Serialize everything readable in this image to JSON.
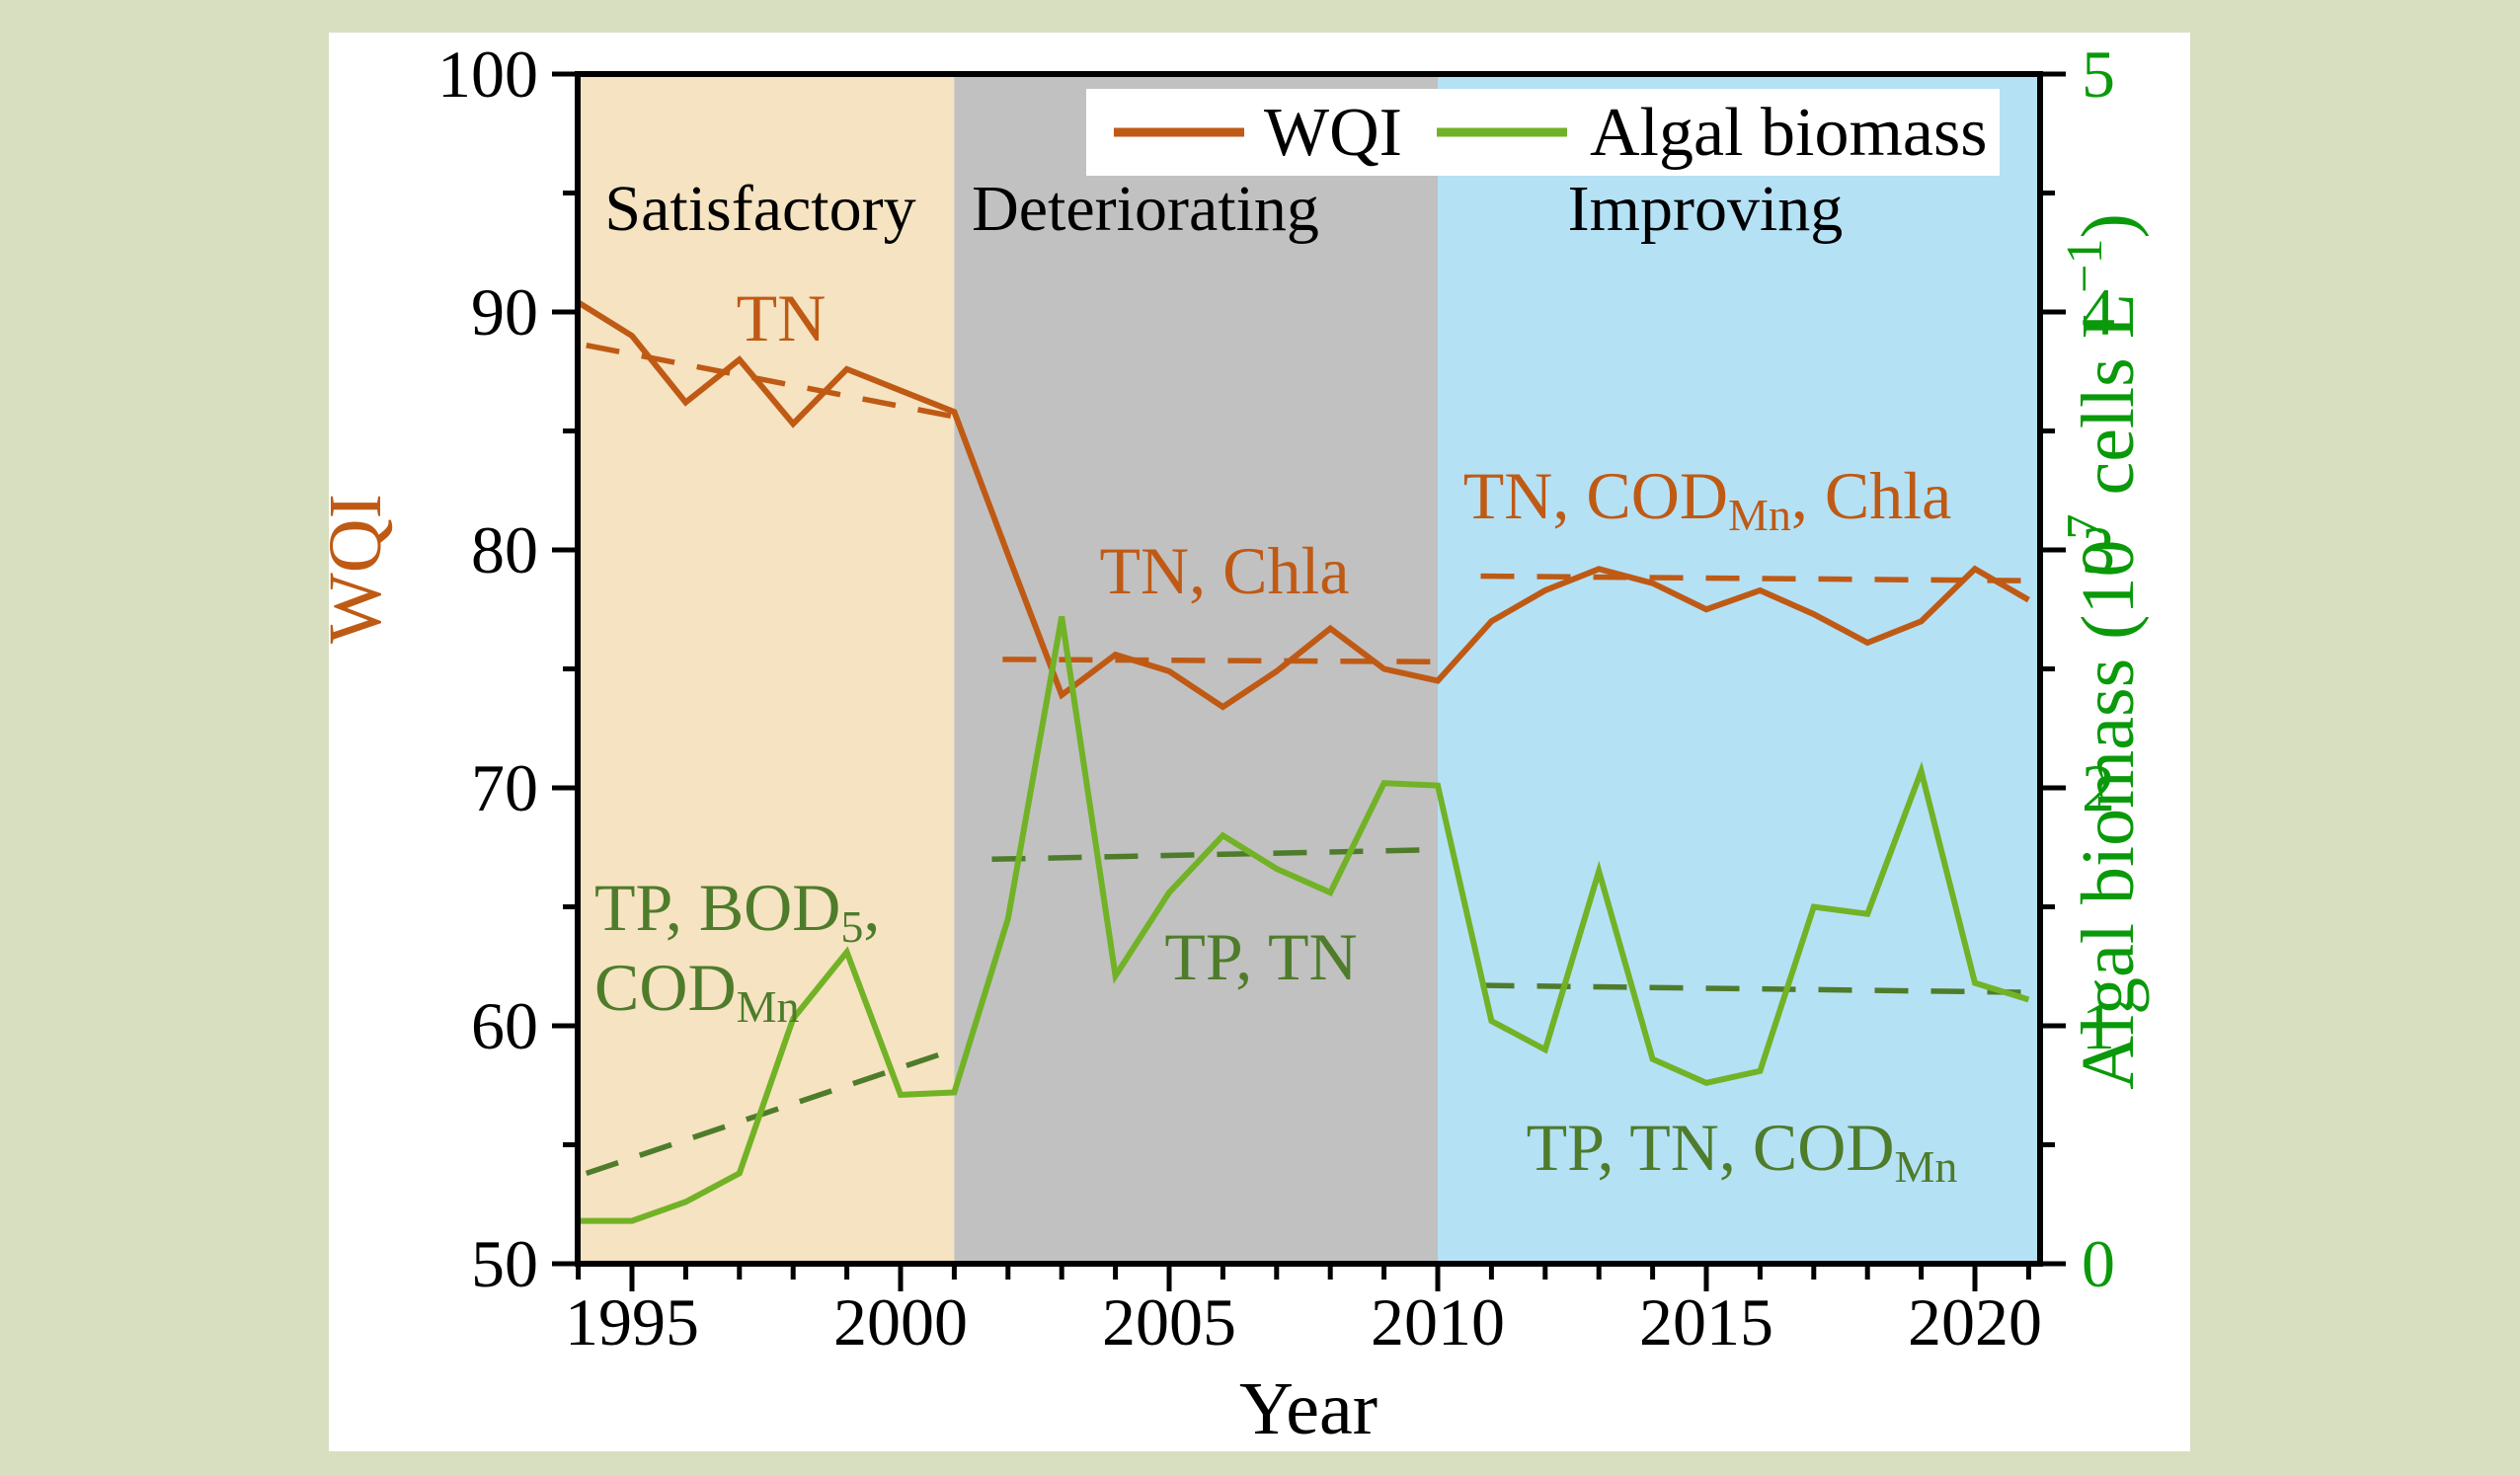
{
  "figure": {
    "background_color": "#d8dec0",
    "panel_color": "#ffffff"
  },
  "legend": {
    "items": [
      {
        "label": "WQI",
        "color": "#bf5a15"
      },
      {
        "label": "Algal biomass",
        "color": "#72b226"
      }
    ]
  },
  "chart_data": {
    "type": "line",
    "xlabel": "Year",
    "x_range": [
      1993.97,
      2021.25
    ],
    "x": [
      1994,
      1995,
      1996,
      1997,
      1998,
      1999,
      2000,
      2001,
      2002,
      2003,
      2004,
      2005,
      2006,
      2007,
      2008,
      2009,
      2010,
      2011,
      2012,
      2013,
      2014,
      2015,
      2016,
      2017,
      2018,
      2019,
      2020,
      2021
    ],
    "series": [
      {
        "name": "WQI",
        "axis": "left",
        "color": "#bf5a15",
        "values": [
          90.4,
          89.0,
          86.2,
          88.0,
          85.3,
          87.6,
          86.7,
          85.8,
          79.8,
          73.9,
          75.6,
          74.9,
          73.4,
          74.9,
          76.7,
          75.0,
          74.5,
          77.0,
          78.3,
          79.2,
          78.6,
          77.5,
          78.3,
          77.3,
          76.1,
          77.0,
          79.2,
          77.9
        ]
      },
      {
        "name": "Algal biomass",
        "axis": "right",
        "color": "#72b226",
        "values": [
          0.18,
          0.18,
          0.26,
          0.38,
          1.03,
          1.31,
          0.71,
          0.72,
          1.45,
          2.72,
          1.21,
          1.56,
          1.8,
          1.66,
          1.56,
          2.02,
          2.01,
          1.02,
          0.9,
          1.65,
          0.86,
          0.76,
          0.81,
          1.5,
          1.47,
          2.07,
          1.18,
          1.11
        ]
      }
    ],
    "trend_lines": [
      {
        "series": "WQI",
        "axis": "left",
        "color": "#bf5a15",
        "style": "dashed",
        "segments": [
          [
            1994.15,
            88.6,
            2001.0,
            85.6
          ],
          [
            2001.9,
            75.4,
            2010.0,
            75.3
          ],
          [
            2010.8,
            78.9,
            2021.2,
            78.7
          ]
        ]
      },
      {
        "series": "Algal biomass",
        "axis": "right",
        "color": "#4e7c2b",
        "style": "dashed",
        "segments": [
          [
            1994.15,
            0.38,
            2001.0,
            0.9
          ],
          [
            2001.7,
            1.7,
            2010.0,
            1.74
          ],
          [
            2010.8,
            1.17,
            2021.2,
            1.14
          ]
        ]
      }
    ],
    "periods": [
      {
        "label": "Satisfactory",
        "start_year": 1993.97,
        "end_year": 2001.0,
        "color": "#f5e3c1",
        "label_x": 770,
        "label_y": 233
      },
      {
        "label": "Deteriorating",
        "start_year": 2001.0,
        "end_year": 2010.0,
        "color": "#c1c1c1",
        "label_x": 1160,
        "label_y": 233
      },
      {
        "label": "Improving",
        "start_year": 2010.0,
        "end_year": 2021.25,
        "color": "#b5e1f5",
        "label_x": 1727,
        "label_y": 233
      }
    ],
    "left_axis": {
      "label": "WQI",
      "color": "#bf5a15",
      "min": 50,
      "max": 100,
      "major_ticks": [
        {
          "value": 50,
          "label": "50"
        },
        {
          "value": 60,
          "label": "60"
        },
        {
          "value": 70,
          "label": "70"
        },
        {
          "value": 80,
          "label": "80"
        },
        {
          "value": 90,
          "label": "90"
        },
        {
          "value": 100,
          "label": "100"
        }
      ],
      "minor_ticks": [
        55,
        65,
        75,
        85,
        95
      ]
    },
    "right_axis": {
      "label_text": "Algal biomass (10⁷ cells L⁻¹)",
      "label_parts": [
        {
          "t": "Algal biomass (10"
        },
        {
          "t": "7",
          "sup": true
        },
        {
          "t": " cells L"
        },
        {
          "t": "−1",
          "sup": true
        },
        {
          "t": ")"
        }
      ],
      "color": "#0a990a",
      "min": 0,
      "max": 5,
      "major_ticks": [
        {
          "value": 0,
          "label": "0"
        },
        {
          "value": 1,
          "label": "1"
        },
        {
          "value": 2,
          "label": "2"
        },
        {
          "value": 3,
          "label": "3"
        },
        {
          "value": 4,
          "label": "4"
        },
        {
          "value": 5,
          "label": "5"
        }
      ],
      "minor_ticks": [
        0.5,
        1.5,
        2.5,
        3.5,
        4.5
      ]
    },
    "bottom_axis": {
      "label": "Year",
      "major_ticks": [
        {
          "value": 1995,
          "label": "1995"
        },
        {
          "value": 2000,
          "label": "2000"
        },
        {
          "value": 2005,
          "label": "2005"
        },
        {
          "value": 2010,
          "label": "2010"
        },
        {
          "value": 2015,
          "label": "2015"
        },
        {
          "value": 2020,
          "label": "2020"
        }
      ],
      "minor_ticks": [
        1994,
        1996,
        1997,
        1998,
        1999,
        2001,
        2002,
        2003,
        2004,
        2006,
        2007,
        2008,
        2009,
        2011,
        2012,
        2013,
        2014,
        2016,
        2017,
        2018,
        2019,
        2021
      ]
    },
    "annotations": [
      {
        "id": "tn",
        "color": "#bf5a15",
        "x": 791,
        "y": 345,
        "anchor": "middle",
        "parts": [
          {
            "t": "TN"
          }
        ]
      },
      {
        "id": "tn-chla",
        "color": "#bf5a15",
        "x": 1240,
        "y": 601,
        "anchor": "middle",
        "parts": [
          {
            "t": "TN, Chla"
          }
        ]
      },
      {
        "id": "tn-codmn-chla",
        "color": "#bf5a15",
        "x": 1729,
        "y": 525,
        "anchor": "middle",
        "parts": [
          {
            "t": "TN, COD"
          },
          {
            "t": "Mn",
            "sub": true
          },
          {
            "t": ", Chla"
          }
        ]
      },
      {
        "id": "tp-bod5-l1",
        "color": "#4e7c2b",
        "x": 602,
        "y": 942,
        "anchor": "start",
        "parts": [
          {
            "t": "TP, BOD"
          },
          {
            "t": "5",
            "sub": true
          },
          {
            "t": ","
          }
        ]
      },
      {
        "id": "tp-bod5-l2",
        "color": "#4e7c2b",
        "x": 602,
        "y": 1023,
        "anchor": "start",
        "parts": [
          {
            "t": "COD"
          },
          {
            "t": "Mn",
            "sub": true
          }
        ]
      },
      {
        "id": "tp-tn",
        "color": "#4e7c2b",
        "x": 1277,
        "y": 992,
        "anchor": "middle",
        "parts": [
          {
            "t": "TP, TN"
          }
        ]
      },
      {
        "id": "tp-tn-codmn",
        "color": "#4e7c2b",
        "x": 1764,
        "y": 1185,
        "anchor": "middle",
        "parts": [
          {
            "t": "TP, TN, COD"
          },
          {
            "t": "Mn",
            "sub": true
          }
        ]
      }
    ]
  }
}
